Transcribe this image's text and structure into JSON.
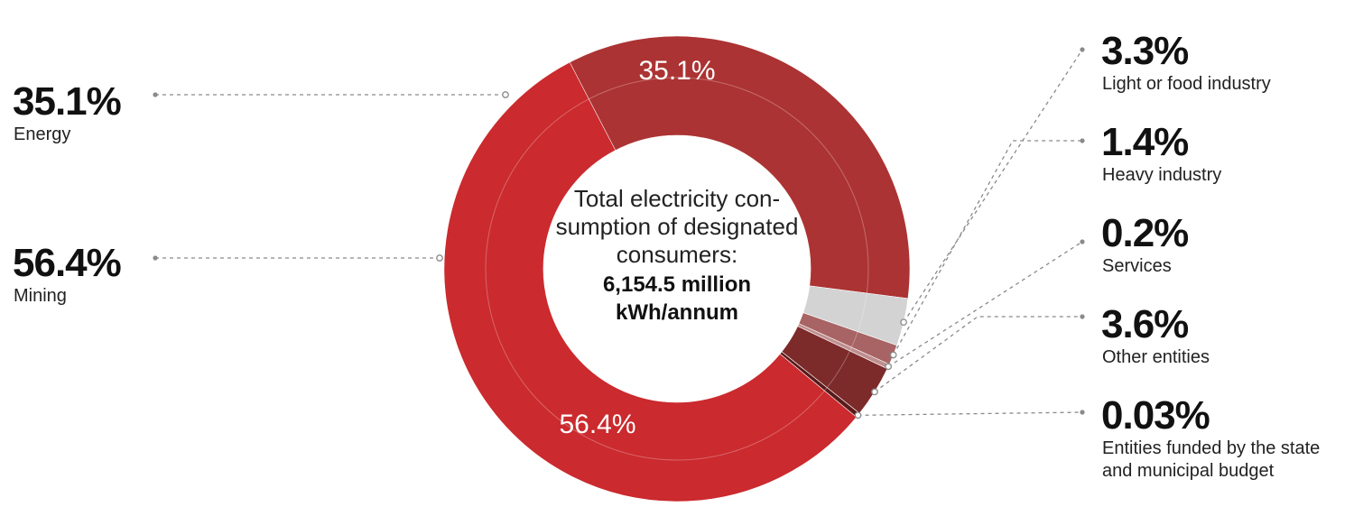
{
  "chart_data": {
    "type": "pie",
    "title": "",
    "center": {
      "lines": [
        "Total electricity con-",
        "sumption of designated",
        "consumers:"
      ],
      "bold_lines": [
        "6,154.5 million",
        "kWh/annum"
      ]
    },
    "slices": [
      {
        "name": "Energy",
        "value": 35.1,
        "label": "35.1%",
        "color": "#ac3333"
      },
      {
        "name": "Light or food industry",
        "value": 3.3,
        "label": "3.3%",
        "color": "#d3d3d3"
      },
      {
        "name": "Heavy industry",
        "value": 1.4,
        "label": "1.4%",
        "color": "#a86464"
      },
      {
        "name": "Services",
        "value": 0.2,
        "label": "0.2%",
        "color": "#bf8f8f"
      },
      {
        "name": "Other entities",
        "value": 3.6,
        "label": "3.6%",
        "color": "#7d2a2a"
      },
      {
        "name": "Entities funded by the state and municipal budget",
        "value": 0.03,
        "label": "0.03%",
        "color": "#5a1a1a"
      },
      {
        "name": "Mining",
        "value": 56.4,
        "label": "56.4%",
        "color": "#cb2a2e"
      }
    ],
    "inner_labels": [
      "35.1%",
      "56.4%"
    ],
    "left_legend": [
      {
        "value": "35.1%",
        "label": "Energy"
      },
      {
        "value": "56.4%",
        "label": "Mining"
      }
    ],
    "right_legend": [
      {
        "value": "3.3%",
        "lines": [
          "Light or food industry"
        ]
      },
      {
        "value": "1.4%",
        "lines": [
          "Heavy industry"
        ]
      },
      {
        "value": "0.2%",
        "lines": [
          "Services"
        ]
      },
      {
        "value": "3.6%",
        "lines": [
          "Other entities"
        ]
      },
      {
        "value": "0.03%",
        "lines": [
          "Entities funded by the state",
          "and municipal budget"
        ]
      }
    ]
  }
}
